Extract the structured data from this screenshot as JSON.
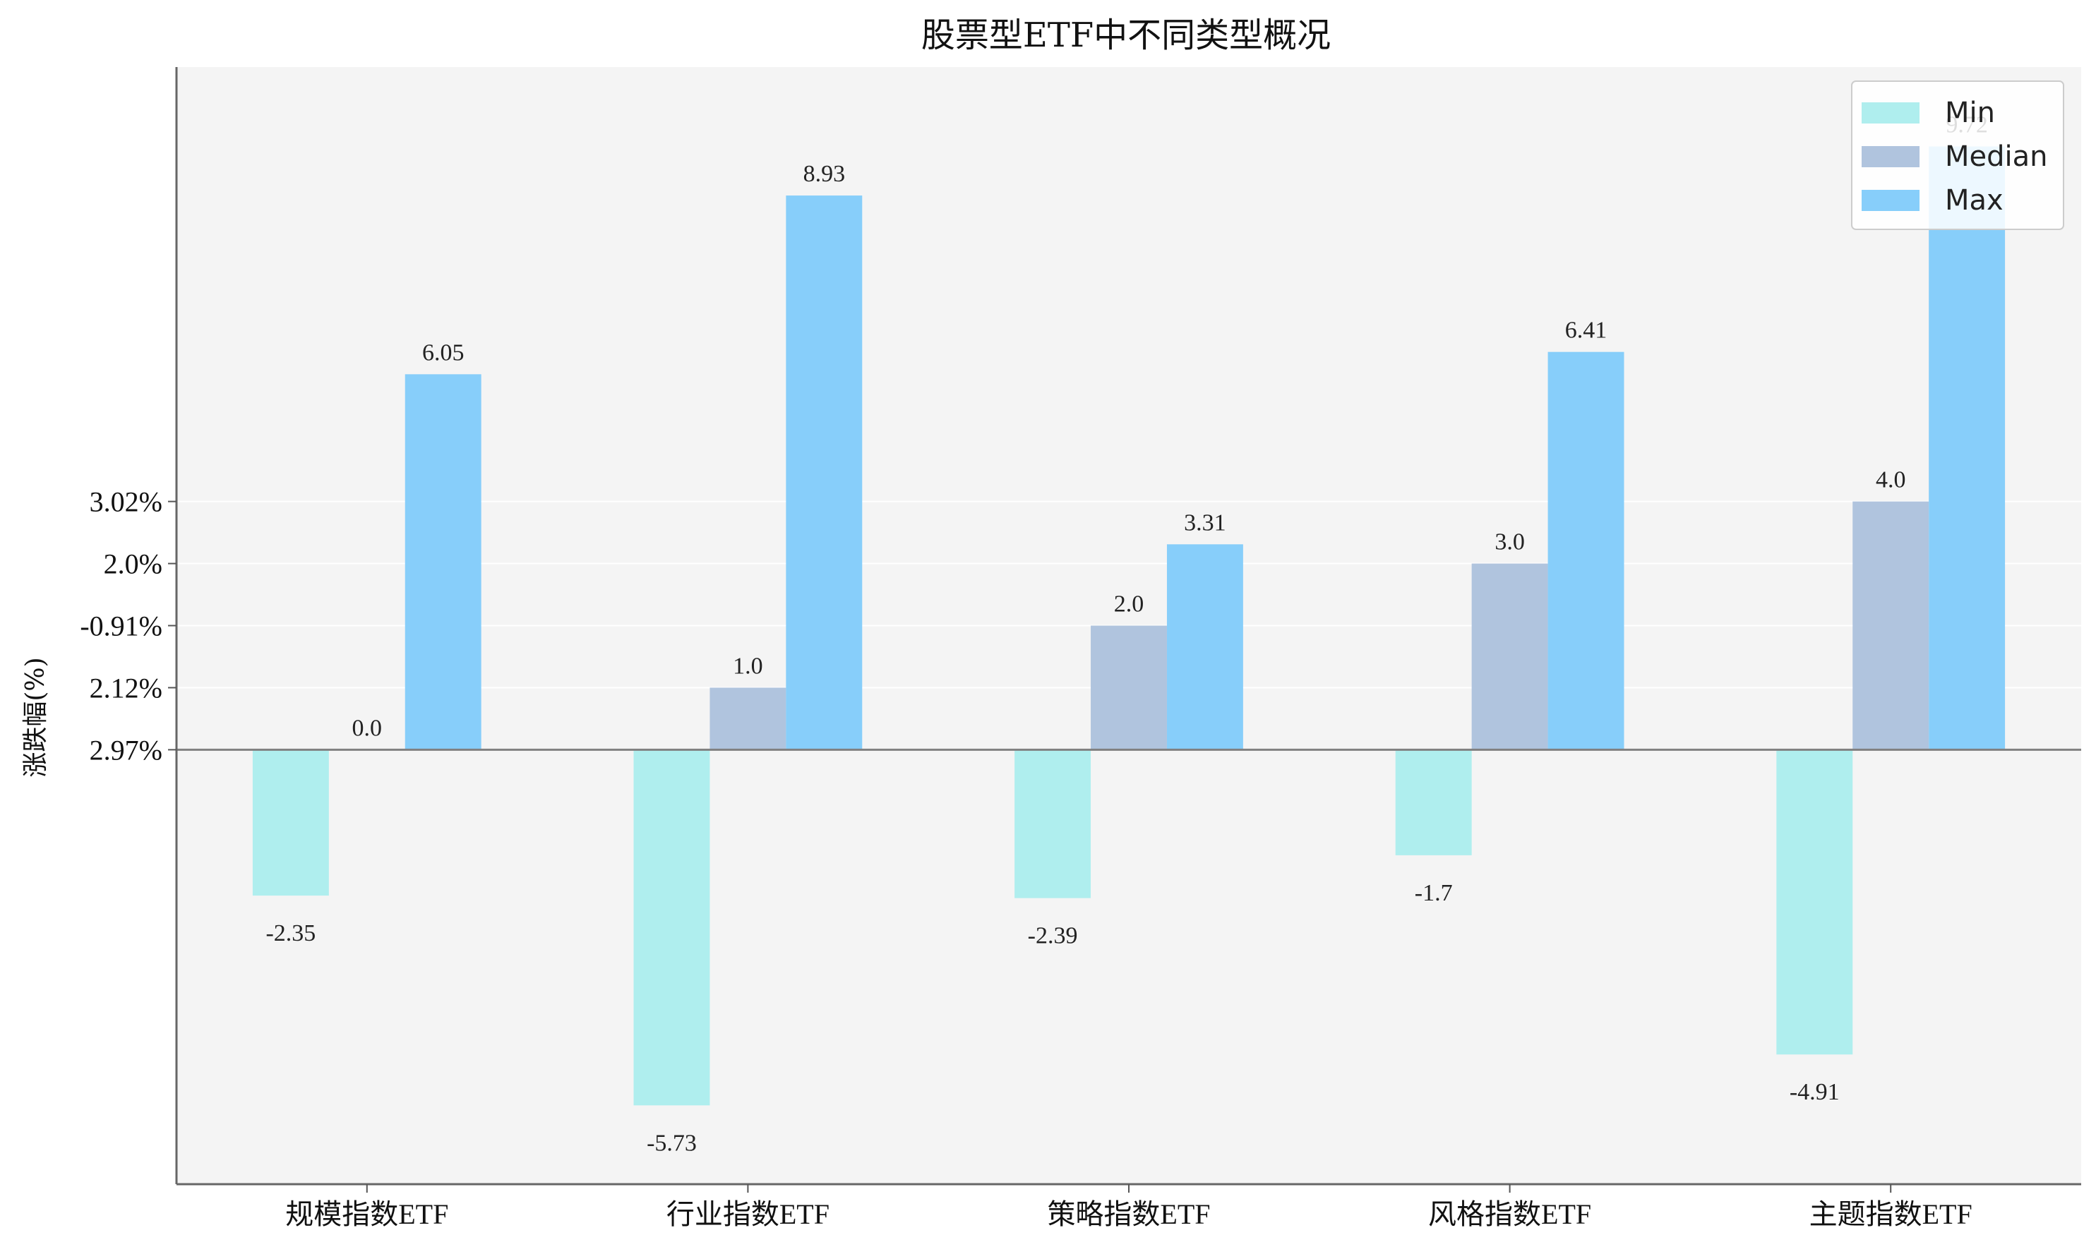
{
  "chart_data": {
    "type": "bar",
    "title": "股票型ETF中不同类型概况",
    "ylabel": "涨跌幅(%)",
    "xlabel": "",
    "categories": [
      "规模指数ETF",
      "行业指数ETF",
      "策略指数ETF",
      "风格指数ETF",
      "主题指数ETF"
    ],
    "series": [
      {
        "name": "Min",
        "values": [
          -2.35,
          -5.73,
          -2.39,
          -1.7,
          -4.91
        ],
        "labels": [
          "-2.35",
          "-5.73",
          "-2.39",
          "-1.7",
          "-4.91"
        ],
        "color": "#afeeee"
      },
      {
        "name": "Median",
        "values": [
          0.0,
          1.0,
          2.0,
          3.0,
          4.0
        ],
        "labels": [
          "0.0",
          "1.0",
          "2.0",
          "3.0",
          "4.0"
        ],
        "color": "#b0c4de"
      },
      {
        "name": "Max",
        "values": [
          6.05,
          8.93,
          3.31,
          6.41,
          9.72
        ],
        "labels": [
          "6.05",
          "8.93",
          "3.31",
          "6.41",
          "9.72"
        ],
        "color": "#87cefa"
      }
    ],
    "ylim": [
      -7,
      11
    ],
    "yticks": [
      0,
      1,
      2,
      3,
      4
    ],
    "ytick_labels": [
      "2.97%",
      "2.12%",
      "-0.91%",
      "2.0%",
      "3.02%"
    ],
    "grid": true,
    "legend_position": "top-right",
    "background_color": "#f4f4f4",
    "zero_line_color": "#808080"
  }
}
